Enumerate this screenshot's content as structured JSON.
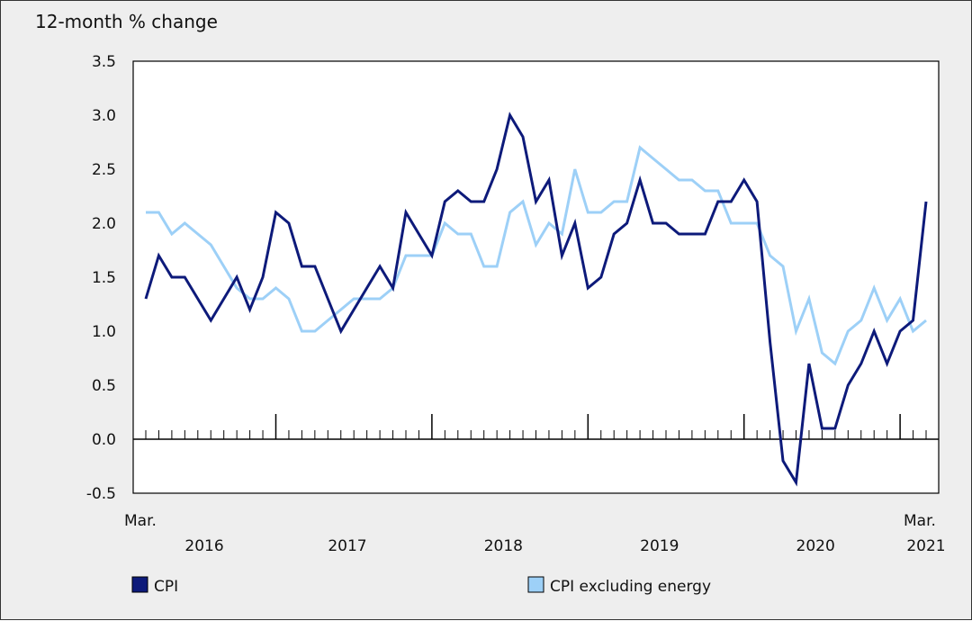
{
  "chart_data": {
    "type": "line",
    "ylabel": "12-month % change",
    "ylim": [
      -0.5,
      3.5
    ],
    "yticks": [
      "3.5",
      "3.0",
      "2.5",
      "2.0",
      "1.5",
      "1.0",
      "0.5",
      "0.0",
      "-0.5"
    ],
    "ytick_values": [
      3.5,
      3.0,
      2.5,
      2.0,
      1.5,
      1.0,
      0.5,
      0.0,
      -0.5
    ],
    "x_start": "Mar. 2016",
    "x_end": "Mar. 2021",
    "x_edge_labels": {
      "start": "Mar.",
      "end": "Mar."
    },
    "year_labels": [
      "2016",
      "2017",
      "2018",
      "2019",
      "2020",
      "2021"
    ],
    "grid": false,
    "legend_position": "bottom",
    "series": [
      {
        "name": "CPI",
        "color": "#0d1a7a",
        "values": [
          1.3,
          1.7,
          1.5,
          1.5,
          1.3,
          1.1,
          1.3,
          1.5,
          1.2,
          1.5,
          2.1,
          2.0,
          1.6,
          1.6,
          1.3,
          1.0,
          1.2,
          1.4,
          1.6,
          1.4,
          2.1,
          1.9,
          1.7,
          2.2,
          2.3,
          2.2,
          2.2,
          2.5,
          3.0,
          2.8,
          2.2,
          2.4,
          1.7,
          2.0,
          1.4,
          1.5,
          1.9,
          2.0,
          2.4,
          2.0,
          2.0,
          1.9,
          1.9,
          1.9,
          2.2,
          2.2,
          2.4,
          2.2,
          0.9,
          -0.2,
          -0.4,
          0.7,
          0.1,
          0.1,
          0.5,
          0.7,
          1.0,
          0.7,
          1.0,
          1.1,
          2.2
        ]
      },
      {
        "name": "CPI excluding energy",
        "color": "#9dd0f7",
        "values": [
          2.1,
          2.1,
          1.9,
          2.0,
          1.9,
          1.8,
          1.6,
          1.4,
          1.3,
          1.3,
          1.4,
          1.3,
          1.0,
          1.0,
          1.1,
          1.2,
          1.3,
          1.3,
          1.3,
          1.4,
          1.7,
          1.7,
          1.7,
          2.0,
          1.9,
          1.9,
          1.6,
          1.6,
          2.1,
          2.2,
          1.8,
          2.0,
          1.9,
          2.5,
          2.1,
          2.1,
          2.2,
          2.2,
          2.7,
          2.6,
          2.5,
          2.4,
          2.4,
          2.3,
          2.3,
          2.0,
          2.0,
          2.0,
          1.7,
          1.6,
          1.0,
          1.3,
          0.8,
          0.7,
          1.0,
          1.1,
          1.4,
          1.1,
          1.3,
          1.0,
          1.1
        ]
      }
    ]
  }
}
